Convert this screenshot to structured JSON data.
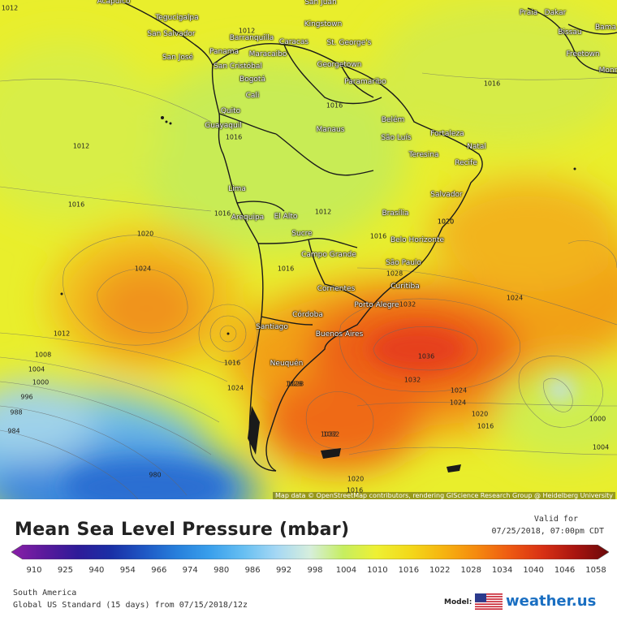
{
  "title": "Mean Sea Level Pressure (mbar)",
  "valid_label": "Valid for",
  "valid_time": "07/25/2018, 07:00pm CDT",
  "region": "South America",
  "model_run": "Global US Standard (15 days) from 07/15/2018/12z",
  "model_label": "Model:",
  "brand": "weather.us",
  "attribution": "Map data © OpenStreetMap contributors, rendering GIScience Research Group @ Heidelberg University",
  "colorbar": {
    "ticks": [
      "910",
      "925",
      "940",
      "954",
      "966",
      "974",
      "980",
      "986",
      "992",
      "998",
      "1004",
      "1010",
      "1016",
      "1022",
      "1028",
      "1034",
      "1040",
      "1046",
      "1058"
    ],
    "stops": [
      "#8b1fa8",
      "#5a1a9c",
      "#2e1b99",
      "#1a2fa6",
      "#1e57c4",
      "#2780dc",
      "#3aa0ec",
      "#67bff2",
      "#a6d8f4",
      "#d6eedc",
      "#c6ee60",
      "#eef033",
      "#f3d91a",
      "#f6b410",
      "#f58a0e",
      "#ee5a12",
      "#d83014",
      "#a81410",
      "#6a0a0a"
    ]
  },
  "cities": [
    {
      "name": "Tegucigalpa"
    },
    {
      "name": "San Salvador"
    },
    {
      "name": "Kingstown"
    },
    {
      "name": "St. George's"
    },
    {
      "name": "Barranquilla"
    },
    {
      "name": "Caracas"
    },
    {
      "name": "Maracaibo"
    },
    {
      "name": "Panama"
    },
    {
      "name": "San José"
    },
    {
      "name": "San Cristóbal"
    },
    {
      "name": "Georgetown"
    },
    {
      "name": "Paramaribo"
    },
    {
      "name": "Bogotá"
    },
    {
      "name": "Cali"
    },
    {
      "name": "Quito"
    },
    {
      "name": "Guayaquil"
    },
    {
      "name": "Manaus"
    },
    {
      "name": "Belém"
    },
    {
      "name": "São Luís"
    },
    {
      "name": "Fortaleza"
    },
    {
      "name": "Natal"
    },
    {
      "name": "Teresina"
    },
    {
      "name": "Recife"
    },
    {
      "name": "Lima"
    },
    {
      "name": "Salvador"
    },
    {
      "name": "Arequipa"
    },
    {
      "name": "El Alto"
    },
    {
      "name": "Brasília"
    },
    {
      "name": "Sucre"
    },
    {
      "name": "Belo Horizonte"
    },
    {
      "name": "Campo Grande"
    },
    {
      "name": "São Paulo"
    },
    {
      "name": "Curitiba"
    },
    {
      "name": "Corrientes"
    },
    {
      "name": "Porto Alegre"
    },
    {
      "name": "Córdoba"
    },
    {
      "name": "Santiago"
    },
    {
      "name": "Buenos Aires"
    },
    {
      "name": "Neuquén"
    },
    {
      "name": "Praia"
    },
    {
      "name": "Dakar"
    },
    {
      "name": "Bissau"
    },
    {
      "name": "Freetown"
    },
    {
      "name": "San Juan"
    },
    {
      "name": "Acapulco"
    },
    {
      "name": "Bama"
    },
    {
      "name": "Monr"
    }
  ],
  "isobars": [
    "1012",
    "1012",
    "1012",
    "1016",
    "1016",
    "1016",
    "1020",
    "1024",
    "1012",
    "1016",
    "1016",
    "1016",
    "1020",
    "1024",
    "1028",
    "1032",
    "1036",
    "1032",
    "1032",
    "1028",
    "1024",
    "1020",
    "1016",
    "1024",
    "1020",
    "1016",
    "1012",
    "1008",
    "1004",
    "1000",
    "996",
    "988",
    "984",
    "980",
    "1000",
    "1004",
    "1016",
    "1024",
    "1028",
    "1032",
    "1016",
    "1020"
  ],
  "colors": {
    "high": "#e14a10",
    "low": "#1f6fd0"
  }
}
